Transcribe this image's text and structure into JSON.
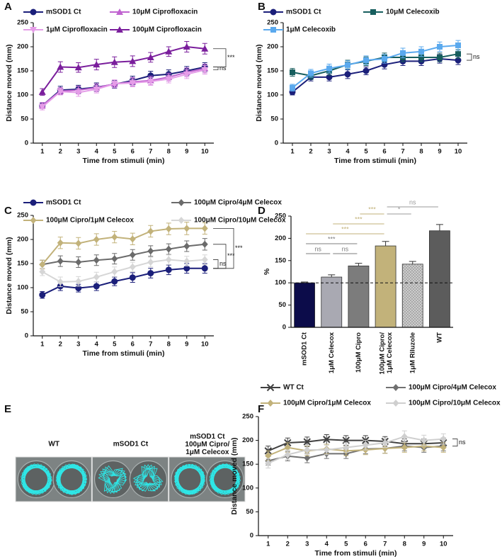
{
  "chart_data": [
    {
      "label": "A",
      "type": "line",
      "x": [
        1,
        2,
        3,
        4,
        5,
        6,
        7,
        8,
        9,
        10
      ],
      "xlim": [
        0.5,
        10.5
      ],
      "xticks": [
        1,
        2,
        3,
        4,
        5,
        6,
        7,
        8,
        9,
        10
      ],
      "ylim": [
        0,
        250
      ],
      "yticks": [
        0,
        50,
        100,
        150,
        200,
        250
      ],
      "xlabel": "Time from stimuli (min)",
      "ylabel": "Distance moved (mm)",
      "series": [
        {
          "name": "mSOD1 Ct",
          "color": "#1b1f7a",
          "marker": "circle",
          "values": [
            78,
            110,
            112,
            116,
            122,
            130,
            140,
            143,
            150,
            158
          ],
          "errors": [
            6,
            8,
            8,
            9,
            8,
            9,
            9,
            9,
            9,
            9
          ]
        },
        {
          "name": "10μM Ciprofloxacin",
          "color": "#c063d0",
          "marker": "tri-up",
          "values": [
            78,
            108,
            110,
            115,
            123,
            127,
            130,
            137,
            147,
            155
          ],
          "errors": [
            6,
            7,
            8,
            8,
            8,
            9,
            9,
            8,
            9,
            9
          ]
        },
        {
          "name": "1μM Ciprofloxacin",
          "color": "#e59de8",
          "marker": "tri-down",
          "values": [
            75,
            107,
            105,
            112,
            123,
            125,
            128,
            133,
            143,
            152
          ],
          "errors": [
            6,
            7,
            8,
            8,
            8,
            8,
            8,
            8,
            9,
            9
          ]
        },
        {
          "name": "100μM Ciprofloxacin",
          "color": "#7a1e9c",
          "marker": "tri-up",
          "values": [
            106,
            158,
            157,
            163,
            168,
            170,
            178,
            190,
            200,
            196
          ],
          "errors": [
            7,
            11,
            10,
            11,
            11,
            11,
            10,
            10,
            11,
            11
          ]
        }
      ],
      "brackets": [
        {
          "label": "ns",
          "series": [
            0,
            2
          ]
        },
        {
          "label": "***",
          "series": [
            3,
            0
          ]
        }
      ]
    },
    {
      "label": "B",
      "type": "line",
      "x": [
        1,
        2,
        3,
        4,
        5,
        6,
        7,
        8,
        9,
        10
      ],
      "xlim": [
        0.5,
        10.5
      ],
      "xticks": [
        1,
        2,
        3,
        4,
        5,
        6,
        7,
        8,
        9,
        10
      ],
      "ylim": [
        0,
        250
      ],
      "yticks": [
        0,
        50,
        100,
        150,
        200,
        250
      ],
      "xlabel": "Time from stimuli (min)",
      "ylabel": "Distance moved (mm)",
      "series": [
        {
          "name": "mSOD1 Ct",
          "color": "#1b1f7a",
          "marker": "circle",
          "values": [
            106,
            137,
            137,
            143,
            150,
            163,
            170,
            170,
            175,
            172
          ],
          "errors": [
            6,
            8,
            8,
            9,
            8,
            9,
            9,
            9,
            9,
            9
          ]
        },
        {
          "name": "10μM Celecoxib",
          "color": "#175e5e",
          "marker": "square",
          "values": [
            147,
            140,
            150,
            163,
            170,
            178,
            178,
            178,
            178,
            185
          ],
          "errors": [
            8,
            8,
            9,
            9,
            9,
            9,
            9,
            9,
            9,
            9
          ]
        },
        {
          "name": "1μM Celecoxib",
          "color": "#5aa9ee",
          "marker": "square",
          "values": [
            115,
            145,
            155,
            162,
            172,
            175,
            187,
            190,
            200,
            203
          ],
          "errors": [
            7,
            8,
            9,
            9,
            9,
            9,
            10,
            10,
            10,
            10
          ]
        }
      ],
      "brackets": [
        {
          "label": "ns",
          "series": [
            1,
            0
          ]
        }
      ]
    },
    {
      "label": "C",
      "type": "line",
      "x": [
        1,
        2,
        3,
        4,
        5,
        6,
        7,
        8,
        9,
        10
      ],
      "xlim": [
        0.5,
        10.5
      ],
      "xticks": [
        1,
        2,
        3,
        4,
        5,
        6,
        7,
        8,
        9,
        10
      ],
      "ylim": [
        0,
        250
      ],
      "yticks": [
        0,
        50,
        100,
        150,
        200,
        250
      ],
      "xlabel": "Time from stimuli (min)",
      "ylabel": "Distance moved (mm)",
      "series": [
        {
          "name": "mSOD1 Ct",
          "color": "#1b1f7a",
          "marker": "circle",
          "values": [
            85,
            103,
            99,
            103,
            113,
            121,
            130,
            137,
            140,
            140
          ],
          "errors": [
            7,
            9,
            8,
            9,
            9,
            10,
            10,
            10,
            10,
            10
          ]
        },
        {
          "name": "100μM Cipro/4μM Celecox",
          "color": "#6b6b6b",
          "marker": "diamond",
          "values": [
            148,
            155,
            153,
            157,
            160,
            168,
            176,
            180,
            186,
            190
          ],
          "errors": [
            9,
            11,
            11,
            11,
            11,
            11,
            11,
            11,
            11,
            12
          ]
        },
        {
          "name": "100μM Cipro/1μM Celecox",
          "color": "#c2b27a",
          "marker": "diamond",
          "values": [
            148,
            193,
            192,
            200,
            205,
            201,
            217,
            222,
            223,
            223
          ],
          "errors": [
            9,
            12,
            12,
            12,
            12,
            12,
            12,
            12,
            13,
            12
          ]
        },
        {
          "name": "100μM Cipro/10μM Celecox",
          "color": "#d6d6d6",
          "marker": "diamond",
          "values": [
            133,
            112,
            113,
            122,
            133,
            143,
            153,
            158,
            155,
            158
          ],
          "errors": [
            8,
            10,
            10,
            10,
            10,
            10,
            10,
            10,
            10,
            10
          ]
        }
      ],
      "brackets": [
        {
          "label": "ns",
          "series": [
            3,
            0
          ]
        },
        {
          "label": "***",
          "series": [
            1,
            0
          ]
        },
        {
          "label": "***",
          "series": [
            2,
            0
          ]
        }
      ]
    },
    {
      "label": "D",
      "type": "bar",
      "ylabel": "%",
      "ylim": [
        0,
        250
      ],
      "yticks": [
        0,
        50,
        100,
        150,
        200,
        250
      ],
      "ref_line": 100,
      "categories": [
        "mSOD1 Ct",
        "1μM Celecox",
        "100μM Cipro",
        "100μM Cipro/\n1μM Celecox",
        "1μM Riluzole",
        "WT"
      ],
      "values": [
        100,
        113,
        138,
        183,
        142,
        217
      ],
      "errors": [
        2,
        5,
        6,
        10,
        6,
        14
      ],
      "colors": [
        "#0c0c4a",
        "#a9a9b2",
        "#7c7c7c",
        "#c2b27a",
        "#c9c9c9",
        "#5c5c5c"
      ],
      "hatch": [
        false,
        false,
        false,
        false,
        true,
        false
      ],
      "brackets": [
        {
          "from": 3,
          "to": 5,
          "label": "ns",
          "color": "#9a9a9a"
        },
        {
          "from": 2,
          "to": 3,
          "label": "***",
          "color": "#c2b27a"
        },
        {
          "from": 3,
          "to": 4,
          "label": "*",
          "color": "#9a9a9a"
        },
        {
          "from": 1,
          "to": 3,
          "label": "***",
          "color": "#c2b27a"
        },
        {
          "from": 0,
          "to": 3,
          "label": "***",
          "color": "#c2b27a"
        },
        {
          "from": 0,
          "to": 2,
          "label": "***",
          "color": "#7c7c7c"
        },
        {
          "from": 0,
          "to": 1,
          "label": "ns",
          "color": "#7c7c7c"
        },
        {
          "from": 1,
          "to": 2,
          "label": "ns",
          "color": "#7c7c7c"
        }
      ]
    },
    {
      "label": "E",
      "type": "image",
      "panels": [
        "WT",
        "mSOD1 Ct",
        "mSOD1 Ct\n100μM Cipro/\n1μM Celecox"
      ]
    },
    {
      "label": "F",
      "type": "line",
      "x": [
        1,
        2,
        3,
        4,
        5,
        6,
        7,
        8,
        9,
        10
      ],
      "xlim": [
        0.5,
        10.5
      ],
      "xticks": [
        1,
        2,
        3,
        4,
        5,
        6,
        7,
        8,
        9,
        10
      ],
      "ylim": [
        0,
        250
      ],
      "yticks": [
        0,
        50,
        100,
        150,
        200,
        250
      ],
      "xlabel": "Time from stimuli (min)",
      "ylabel": "Distance moved (mm)",
      "series": [
        {
          "name": "WT Ct",
          "color": "#404040",
          "marker": "x",
          "values": [
            178,
            195,
            197,
            202,
            200,
            200,
            198,
            193,
            193,
            195
          ],
          "errors": [
            10,
            10,
            10,
            10,
            10,
            10,
            10,
            10,
            10,
            10
          ]
        },
        {
          "name": "100μM Cipro/4μM Celecox",
          "color": "#707070",
          "marker": "diamond",
          "values": [
            157,
            167,
            163,
            172,
            172,
            182,
            183,
            188,
            185,
            188
          ],
          "errors": [
            9,
            10,
            10,
            10,
            10,
            10,
            10,
            10,
            10,
            10
          ]
        },
        {
          "name": "100μM Cipro/1μM Celecox",
          "color": "#c2b27a",
          "marker": "diamond",
          "values": [
            168,
            185,
            178,
            182,
            178,
            180,
            183,
            185,
            188,
            185
          ],
          "errors": [
            10,
            10,
            10,
            10,
            10,
            10,
            10,
            10,
            10,
            10
          ]
        },
        {
          "name": "100μM Cipro/10μM Celecox",
          "color": "#cfcfcf",
          "marker": "diamond",
          "values": [
            152,
            170,
            180,
            180,
            185,
            190,
            195,
            208,
            200,
            203
          ],
          "errors": [
            10,
            10,
            10,
            10,
            10,
            10,
            10,
            12,
            11,
            11
          ]
        }
      ],
      "brackets": [
        {
          "label": "ns",
          "series": [
            3,
            1
          ]
        }
      ]
    }
  ]
}
